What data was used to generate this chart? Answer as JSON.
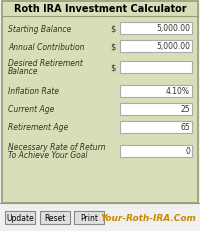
{
  "title": "Roth IRA Investment Calculator",
  "bg_color": "#d8deb8",
  "bottom_bg": "#f0f0f0",
  "border_color": "#999977",
  "title_color": "#000000",
  "label_color": "#333322",
  "fields": [
    {
      "label": "Starting Balance",
      "dollar": true,
      "value": "5,000.00"
    },
    {
      "label": "Annual Contribution",
      "dollar": true,
      "value": "5,000.00"
    },
    {
      "label": "Desired Retirement\nBalance",
      "dollar": true,
      "value": ""
    },
    {
      "label": "Inflation Rate",
      "dollar": false,
      "value": "4.10%"
    },
    {
      "label": "Current Age",
      "dollar": false,
      "value": "25"
    },
    {
      "label": "Retirement Age",
      "dollar": false,
      "value": "65"
    },
    {
      "label": "Necessary Rate of Return\nTo Achieve Your Goal",
      "dollar": false,
      "value": "0"
    }
  ],
  "buttons": [
    "Update",
    "Reset",
    "Print"
  ],
  "footer_text": "Your-Roth-IRA.Com",
  "box_fill": "#ffffff",
  "box_edge": "#aaaaaa",
  "button_fill": "#e0e0e0",
  "button_edge": "#888888",
  "font_family": "DejaVu Sans"
}
